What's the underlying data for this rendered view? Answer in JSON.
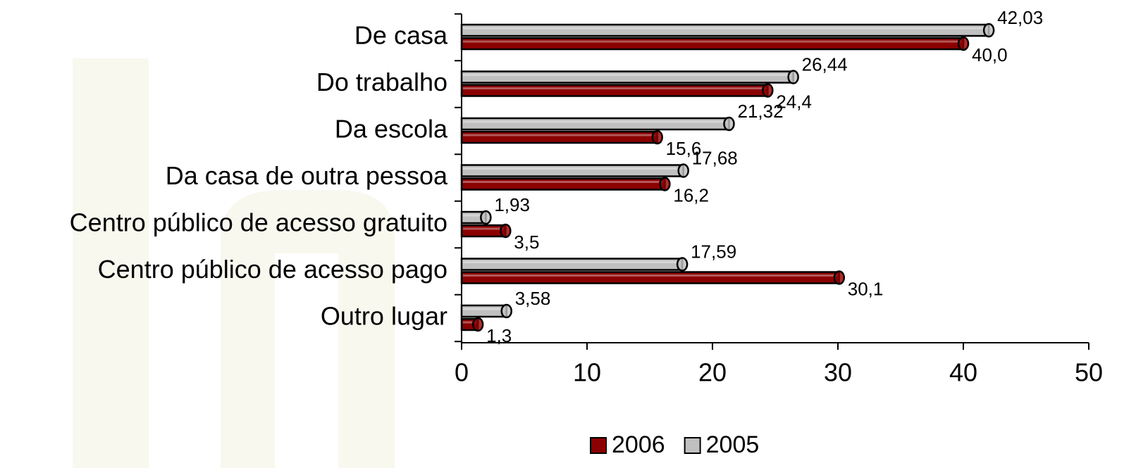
{
  "chart_data": {
    "type": "bar",
    "orientation": "horizontal",
    "categories": [
      "De casa",
      "Do trabalho",
      "Da escola",
      "Da casa de outra pessoa",
      "Centro público de acesso gratuito",
      "Centro público de acesso pago",
      "Outro lugar"
    ],
    "series": [
      {
        "name": "2006",
        "color": "#8b0000",
        "values": [
          40.0,
          24.4,
          15.6,
          16.2,
          3.5,
          30.1,
          1.3
        ],
        "value_labels": [
          "40,0",
          "24,4",
          "15,6",
          "16,2",
          "3,5",
          "30,1",
          "1,3"
        ]
      },
      {
        "name": "2005",
        "color": "#c0c0c0",
        "values": [
          42.03,
          26.44,
          21.32,
          17.68,
          1.93,
          17.59,
          3.58
        ],
        "value_labels": [
          "42,03",
          "26,44",
          "21,32",
          "17,68",
          "1,93",
          "17,59",
          "3,58"
        ]
      }
    ],
    "xlim": [
      0,
      50
    ],
    "xticks": [
      0,
      10,
      20,
      30,
      40,
      50
    ],
    "legend": "bottom"
  }
}
